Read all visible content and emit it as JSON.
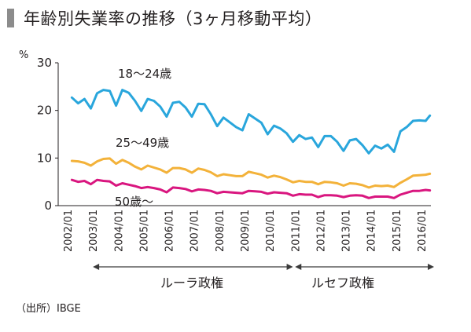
{
  "title": "年齢別失業率の推移（3ヶ月移動平均）",
  "source": "（出所）IBGE",
  "eras": [
    {
      "label": "ルーラ政権",
      "from": "2003/01",
      "to": "2010/12"
    },
    {
      "label": "ルセフ政権",
      "from": "2011/01",
      "to": "2016/07"
    }
  ],
  "colors": {
    "age_18_24": "#29a6dc",
    "age_25_49": "#f3b23a",
    "age_50_plus": "#d9167f",
    "axis": "#231f20",
    "arrow": "#3a3a3a"
  },
  "chart_data": {
    "type": "line",
    "ylabel": "%",
    "ylim": [
      0,
      30
    ],
    "yticks": [
      0,
      10,
      20,
      30
    ],
    "xticks": [
      "2002/01",
      "2003/01",
      "2004/01",
      "2005/01",
      "2006/01",
      "2007/01",
      "2008/01",
      "2009/01",
      "2010/01",
      "2011/01",
      "2012/01",
      "2013/01",
      "2014/01",
      "2015/01",
      "2016/01"
    ],
    "grid": false,
    "legend": "inline labels",
    "series": [
      {
        "name": "18〜24歳",
        "color_key": "age_18_24",
        "points": [
          [
            "2002/03",
            22.7
          ],
          [
            "2002/06",
            21.5
          ],
          [
            "2002/09",
            22.4
          ],
          [
            "2002/12",
            20.4
          ],
          [
            "2003/03",
            23.6
          ],
          [
            "2003/06",
            24.3
          ],
          [
            "2003/09",
            24.1
          ],
          [
            "2003/12",
            21.0
          ],
          [
            "2004/03",
            24.3
          ],
          [
            "2004/06",
            23.7
          ],
          [
            "2004/09",
            22.0
          ],
          [
            "2004/12",
            19.9
          ],
          [
            "2005/03",
            22.4
          ],
          [
            "2005/06",
            22.0
          ],
          [
            "2005/09",
            20.8
          ],
          [
            "2005/12",
            18.7
          ],
          [
            "2006/03",
            21.6
          ],
          [
            "2006/06",
            21.8
          ],
          [
            "2006/09",
            20.6
          ],
          [
            "2006/12",
            18.7
          ],
          [
            "2007/03",
            21.4
          ],
          [
            "2007/06",
            21.3
          ],
          [
            "2007/09",
            19.2
          ],
          [
            "2007/12",
            16.7
          ],
          [
            "2008/03",
            18.5
          ],
          [
            "2008/06",
            17.5
          ],
          [
            "2008/09",
            16.5
          ],
          [
            "2008/12",
            15.8
          ],
          [
            "2009/03",
            19.2
          ],
          [
            "2009/06",
            18.3
          ],
          [
            "2009/09",
            17.4
          ],
          [
            "2009/12",
            15.0
          ],
          [
            "2010/03",
            16.8
          ],
          [
            "2010/06",
            16.2
          ],
          [
            "2010/09",
            15.2
          ],
          [
            "2010/12",
            13.4
          ],
          [
            "2011/03",
            14.8
          ],
          [
            "2011/06",
            14.0
          ],
          [
            "2011/09",
            14.3
          ],
          [
            "2011/12",
            12.3
          ],
          [
            "2012/03",
            14.6
          ],
          [
            "2012/06",
            14.6
          ],
          [
            "2012/09",
            13.4
          ],
          [
            "2012/12",
            11.5
          ],
          [
            "2013/03",
            13.7
          ],
          [
            "2013/06",
            14.0
          ],
          [
            "2013/09",
            12.7
          ],
          [
            "2013/12",
            11.0
          ],
          [
            "2014/03",
            12.6
          ],
          [
            "2014/06",
            12.0
          ],
          [
            "2014/09",
            12.8
          ],
          [
            "2014/12",
            11.3
          ],
          [
            "2015/03",
            15.6
          ],
          [
            "2015/06",
            16.5
          ],
          [
            "2015/09",
            17.8
          ],
          [
            "2015/12",
            17.9
          ],
          [
            "2016/03",
            17.8
          ],
          [
            "2016/05",
            18.9
          ]
        ]
      },
      {
        "name": "25〜49歳",
        "color_key": "age_25_49",
        "points": [
          [
            "2002/03",
            9.4
          ],
          [
            "2002/06",
            9.3
          ],
          [
            "2002/09",
            9.0
          ],
          [
            "2002/12",
            8.4
          ],
          [
            "2003/03",
            9.3
          ],
          [
            "2003/06",
            9.8
          ],
          [
            "2003/09",
            9.9
          ],
          [
            "2003/12",
            8.8
          ],
          [
            "2004/03",
            9.6
          ],
          [
            "2004/06",
            9.0
          ],
          [
            "2004/09",
            8.2
          ],
          [
            "2004/12",
            7.6
          ],
          [
            "2005/03",
            8.4
          ],
          [
            "2005/06",
            8.0
          ],
          [
            "2005/09",
            7.6
          ],
          [
            "2005/12",
            6.9
          ],
          [
            "2006/03",
            7.9
          ],
          [
            "2006/06",
            7.9
          ],
          [
            "2006/09",
            7.6
          ],
          [
            "2006/12",
            6.9
          ],
          [
            "2007/03",
            7.8
          ],
          [
            "2007/06",
            7.5
          ],
          [
            "2007/09",
            7.0
          ],
          [
            "2007/12",
            6.2
          ],
          [
            "2008/03",
            6.6
          ],
          [
            "2008/06",
            6.4
          ],
          [
            "2008/09",
            6.2
          ],
          [
            "2008/12",
            6.2
          ],
          [
            "2009/03",
            7.1
          ],
          [
            "2009/06",
            6.8
          ],
          [
            "2009/09",
            6.5
          ],
          [
            "2009/12",
            5.9
          ],
          [
            "2010/03",
            6.3
          ],
          [
            "2010/06",
            6.0
          ],
          [
            "2010/09",
            5.5
          ],
          [
            "2010/12",
            4.9
          ],
          [
            "2011/03",
            5.2
          ],
          [
            "2011/06",
            5.0
          ],
          [
            "2011/09",
            5.0
          ],
          [
            "2011/12",
            4.5
          ],
          [
            "2012/03",
            5.0
          ],
          [
            "2012/06",
            4.9
          ],
          [
            "2012/09",
            4.7
          ],
          [
            "2012/12",
            4.2
          ],
          [
            "2013/03",
            4.7
          ],
          [
            "2013/06",
            4.6
          ],
          [
            "2013/09",
            4.3
          ],
          [
            "2013/12",
            3.8
          ],
          [
            "2014/03",
            4.2
          ],
          [
            "2014/06",
            4.1
          ],
          [
            "2014/09",
            4.2
          ],
          [
            "2014/12",
            3.9
          ],
          [
            "2015/03",
            4.8
          ],
          [
            "2015/06",
            5.5
          ],
          [
            "2015/09",
            6.3
          ],
          [
            "2015/12",
            6.4
          ],
          [
            "2016/03",
            6.5
          ],
          [
            "2016/05",
            6.7
          ]
        ]
      },
      {
        "name": "50歳〜",
        "color_key": "age_50_plus",
        "points": [
          [
            "2002/03",
            5.4
          ],
          [
            "2002/06",
            5.0
          ],
          [
            "2002/09",
            5.2
          ],
          [
            "2002/12",
            4.5
          ],
          [
            "2003/03",
            5.4
          ],
          [
            "2003/06",
            5.2
          ],
          [
            "2003/09",
            5.1
          ],
          [
            "2003/12",
            4.2
          ],
          [
            "2004/03",
            4.7
          ],
          [
            "2004/06",
            4.4
          ],
          [
            "2004/09",
            4.1
          ],
          [
            "2004/12",
            3.7
          ],
          [
            "2005/03",
            3.9
          ],
          [
            "2005/06",
            3.7
          ],
          [
            "2005/09",
            3.4
          ],
          [
            "2005/12",
            2.8
          ],
          [
            "2006/03",
            3.8
          ],
          [
            "2006/06",
            3.7
          ],
          [
            "2006/09",
            3.5
          ],
          [
            "2006/12",
            3.0
          ],
          [
            "2007/03",
            3.4
          ],
          [
            "2007/06",
            3.3
          ],
          [
            "2007/09",
            3.1
          ],
          [
            "2007/12",
            2.6
          ],
          [
            "2008/03",
            2.9
          ],
          [
            "2008/06",
            2.8
          ],
          [
            "2008/09",
            2.7
          ],
          [
            "2008/12",
            2.6
          ],
          [
            "2009/03",
            3.1
          ],
          [
            "2009/06",
            3.0
          ],
          [
            "2009/09",
            2.9
          ],
          [
            "2009/12",
            2.5
          ],
          [
            "2010/03",
            2.8
          ],
          [
            "2010/06",
            2.7
          ],
          [
            "2010/09",
            2.6
          ],
          [
            "2010/12",
            2.1
          ],
          [
            "2011/03",
            2.4
          ],
          [
            "2011/06",
            2.3
          ],
          [
            "2011/09",
            2.3
          ],
          [
            "2011/12",
            1.8
          ],
          [
            "2012/03",
            2.2
          ],
          [
            "2012/06",
            2.2
          ],
          [
            "2012/09",
            2.1
          ],
          [
            "2012/12",
            1.8
          ],
          [
            "2013/03",
            2.1
          ],
          [
            "2013/06",
            2.2
          ],
          [
            "2013/09",
            2.1
          ],
          [
            "2013/12",
            1.6
          ],
          [
            "2014/03",
            1.9
          ],
          [
            "2014/06",
            1.9
          ],
          [
            "2014/09",
            1.9
          ],
          [
            "2014/12",
            1.6
          ],
          [
            "2015/03",
            2.3
          ],
          [
            "2015/06",
            2.7
          ],
          [
            "2015/09",
            3.1
          ],
          [
            "2015/12",
            3.1
          ],
          [
            "2016/03",
            3.3
          ],
          [
            "2016/05",
            3.2
          ]
        ]
      }
    ]
  }
}
